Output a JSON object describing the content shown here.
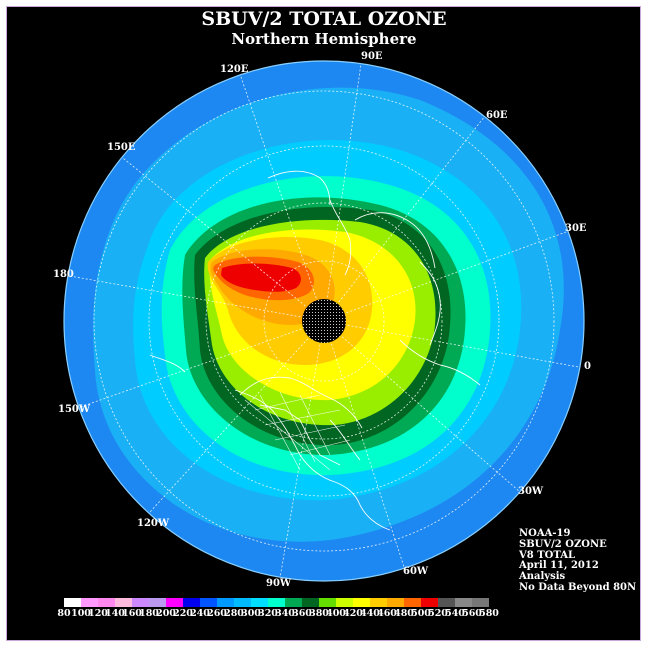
{
  "title": "SBUV/2 TOTAL OZONE",
  "subtitle": "Northern Hemisphere",
  "longitude_labels": [
    "90E",
    "60E",
    "30E",
    "0",
    "30W",
    "60W",
    "90W",
    "120W",
    "150W",
    "180",
    "150E",
    "120E"
  ],
  "info": {
    "satellite": "NOAA-19",
    "product": "SBUV/2 OZONE",
    "version": "V8 TOTAL",
    "date": "April 11, 2012",
    "type": "Analysis",
    "note": "No Data Beyond 80N"
  },
  "colorbar": {
    "labels": [
      "80",
      "100",
      "120",
      "140",
      "160",
      "180",
      "200",
      "220",
      "240",
      "260",
      "280",
      "300",
      "320",
      "340",
      "360",
      "380",
      "400",
      "420",
      "440",
      "460",
      "480",
      "500",
      "520",
      "540",
      "560",
      "580"
    ],
    "colors": [
      "#ffffff",
      "#ff99ff",
      "#ff88ee",
      "#ffbbdd",
      "#cc88ff",
      "#bb99ee",
      "#ff00ff",
      "#0000ee",
      "#0055ff",
      "#0099ff",
      "#00bbff",
      "#00ddff",
      "#00ffcc",
      "#00aa55",
      "#006622",
      "#66dd00",
      "#ccff00",
      "#ffff00",
      "#ffcc00",
      "#ffaa00",
      "#ff6600",
      "#ee0000",
      "#555555",
      "#888888",
      "#777777"
    ]
  },
  "colors": {
    "background": "#000000",
    "ocean_ring": "#1e88f2",
    "band_cyan": "#00ccff",
    "band_teal": "#00ffcc",
    "band_green": "#00aa55",
    "band_dark_green": "#006622",
    "band_yellow": "#ffff00",
    "band_orange": "#ffaa00",
    "band_red": "#ee0000",
    "pole_mask": "#000000"
  }
}
